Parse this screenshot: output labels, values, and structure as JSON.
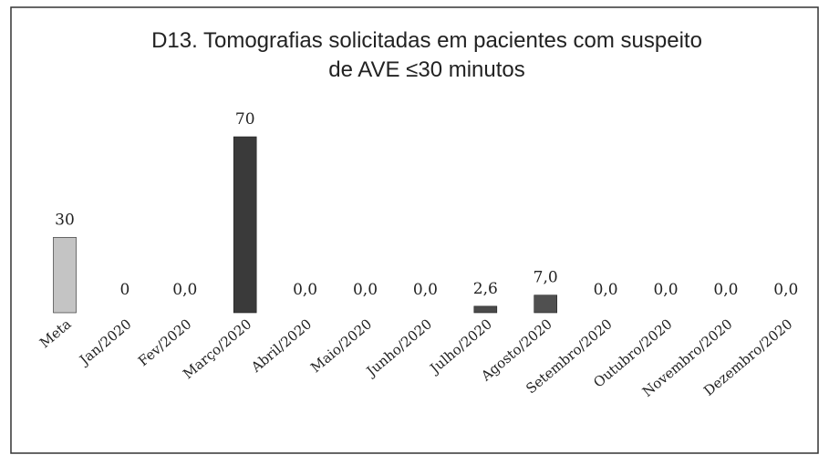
{
  "chart_data": {
    "type": "bar",
    "title": [
      "D13. Tomografias solicitadas em pacientes com suspeito",
      "de AVE ≤30 minutos"
    ],
    "categories": [
      "Meta",
      "Jan/2020",
      "Fev/2020",
      "Março/2020",
      "Abril/2020",
      "Maio/2020",
      "Junho/2020",
      "Julho/2020",
      "Agosto/2020",
      "Setembro/2020",
      "Outubro/2020",
      "Novembro/2020",
      "Dezembro/2020"
    ],
    "values": [
      30,
      0,
      0,
      70,
      0,
      0,
      0,
      2.6,
      7,
      0,
      0,
      0,
      0
    ],
    "value_labels": [
      "30",
      "0",
      "0,0",
      "70",
      "0,0",
      "0,0",
      "0,0",
      "2,6",
      "7,0",
      "0,0",
      "0,0",
      "0,0",
      "0,0"
    ],
    "colors": [
      "#c4c4c4",
      "#555555",
      "#555555",
      "#3a3a3a",
      "#555555",
      "#555555",
      "#555555",
      "#4a4a4a",
      "#505050",
      "#555555",
      "#555555",
      "#555555",
      "#555555"
    ]
  }
}
